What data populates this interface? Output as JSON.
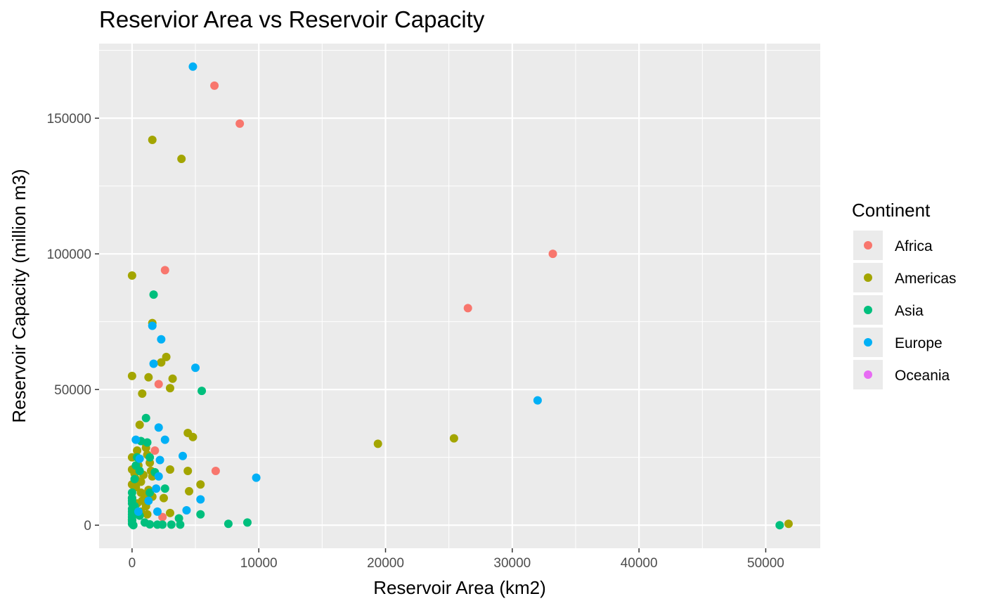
{
  "chart_data": {
    "type": "scatter",
    "title": "Reservior Area vs Reservoir Capacity",
    "xlabel": "Reservoir Area (km2)",
    "ylabel": "Reservoir Capacity (million m3)",
    "xlim": [
      -2600,
      54300
    ],
    "ylim": [
      -8500,
      177500
    ],
    "x_ticks": [
      0,
      10000,
      20000,
      30000,
      40000,
      50000
    ],
    "x_tick_labels": [
      "0",
      "10000",
      "20000",
      "30000",
      "40000",
      "50000"
    ],
    "y_ticks": [
      0,
      50000,
      100000,
      150000
    ],
    "y_tick_labels": [
      "0",
      "50000",
      "100000",
      "150000"
    ],
    "grid": true,
    "legend": {
      "title": "Continent",
      "placement": "right",
      "entries": [
        "Africa",
        "Americas",
        "Asia",
        "Europe",
        "Oceania"
      ]
    },
    "colors": {
      "Africa": "#F8766D",
      "Americas": "#A3A500",
      "Asia": "#00BF7D",
      "Europe": "#00B0F6",
      "Oceania": "#E76BF3",
      "panel": "#EBEBEB",
      "grid": "#FFFFFF"
    },
    "series": [
      {
        "name": "Africa",
        "points": [
          [
            6500,
            162000
          ],
          [
            8500,
            148000
          ],
          [
            33200,
            100000
          ],
          [
            2600,
            94000
          ],
          [
            26500,
            80000
          ],
          [
            2100,
            52000
          ],
          [
            1800,
            27500
          ],
          [
            6600,
            20000
          ],
          [
            0,
            15000
          ],
          [
            2400,
            3000
          ]
        ]
      },
      {
        "name": "Americas",
        "points": [
          [
            1600,
            142000
          ],
          [
            3900,
            135000
          ],
          [
            0,
            92000
          ],
          [
            1600,
            74500
          ],
          [
            0,
            55000
          ],
          [
            2700,
            62000
          ],
          [
            2300,
            60000
          ],
          [
            1300,
            54500
          ],
          [
            3200,
            54000
          ],
          [
            3000,
            50500
          ],
          [
            800,
            48500
          ],
          [
            600,
            37000
          ],
          [
            4400,
            34000
          ],
          [
            4800,
            32500
          ],
          [
            19400,
            30000
          ],
          [
            25400,
            32000
          ],
          [
            1100,
            30000
          ],
          [
            1100,
            28500
          ],
          [
            400,
            27500
          ],
          [
            1200,
            26000
          ],
          [
            0,
            25000
          ],
          [
            1400,
            23000
          ],
          [
            500,
            22000
          ],
          [
            0,
            20500
          ],
          [
            1500,
            20000
          ],
          [
            3000,
            20500
          ],
          [
            4400,
            20000
          ],
          [
            200,
            19000
          ],
          [
            900,
            18500
          ],
          [
            1600,
            18000
          ],
          [
            300,
            17000
          ],
          [
            700,
            16000
          ],
          [
            0,
            15000
          ],
          [
            5400,
            15000
          ],
          [
            300,
            14000
          ],
          [
            1300,
            13000
          ],
          [
            4500,
            12500
          ],
          [
            700,
            12000
          ],
          [
            1000,
            11000
          ],
          [
            1600,
            10500
          ],
          [
            0,
            10000
          ],
          [
            2500,
            10000
          ],
          [
            800,
            9000
          ],
          [
            400,
            8000
          ],
          [
            1100,
            7000
          ],
          [
            200,
            6000
          ],
          [
            700,
            5000
          ],
          [
            3000,
            4500
          ],
          [
            1200,
            4000
          ],
          [
            51800,
            500
          ],
          [
            0,
            2000
          ]
        ]
      },
      {
        "name": "Asia",
        "points": [
          [
            1700,
            85000
          ],
          [
            5500,
            49500
          ],
          [
            1100,
            39500
          ],
          [
            700,
            31000
          ],
          [
            1200,
            30500
          ],
          [
            400,
            25000
          ],
          [
            1400,
            25000
          ],
          [
            300,
            22000
          ],
          [
            600,
            20000
          ],
          [
            1800,
            19500
          ],
          [
            200,
            17000
          ],
          [
            2600,
            13500
          ],
          [
            1400,
            12000
          ],
          [
            0,
            12000
          ],
          [
            0,
            10000
          ],
          [
            0,
            9000
          ],
          [
            0,
            8000
          ],
          [
            200,
            7000
          ],
          [
            0,
            6000
          ],
          [
            0,
            5000
          ],
          [
            0,
            4000
          ],
          [
            5400,
            4000
          ],
          [
            600,
            3500
          ],
          [
            0,
            3000
          ],
          [
            3700,
            2500
          ],
          [
            0,
            2000
          ],
          [
            0,
            1500
          ],
          [
            9100,
            1000
          ],
          [
            1000,
            1000
          ],
          [
            7600,
            500
          ],
          [
            0,
            500
          ],
          [
            2000,
            200
          ],
          [
            2400,
            200
          ],
          [
            3100,
            200
          ],
          [
            3800,
            200
          ],
          [
            1400,
            300
          ],
          [
            100,
            0
          ],
          [
            51100,
            0
          ]
        ]
      },
      {
        "name": "Europe",
        "points": [
          [
            4800,
            169000
          ],
          [
            1600,
            73500
          ],
          [
            2300,
            68500
          ],
          [
            1700,
            59500
          ],
          [
            5000,
            58000
          ],
          [
            32000,
            46000
          ],
          [
            2100,
            36000
          ],
          [
            2600,
            31500
          ],
          [
            300,
            31500
          ],
          [
            4000,
            25500
          ],
          [
            2200,
            24000
          ],
          [
            600,
            24500
          ],
          [
            9800,
            17500
          ],
          [
            2100,
            18000
          ],
          [
            1900,
            13500
          ],
          [
            5400,
            9500
          ],
          [
            1300,
            9000
          ],
          [
            4300,
            5500
          ],
          [
            2000,
            5000
          ],
          [
            500,
            5000
          ]
        ]
      },
      {
        "name": "Oceania",
        "points": []
      }
    ]
  }
}
